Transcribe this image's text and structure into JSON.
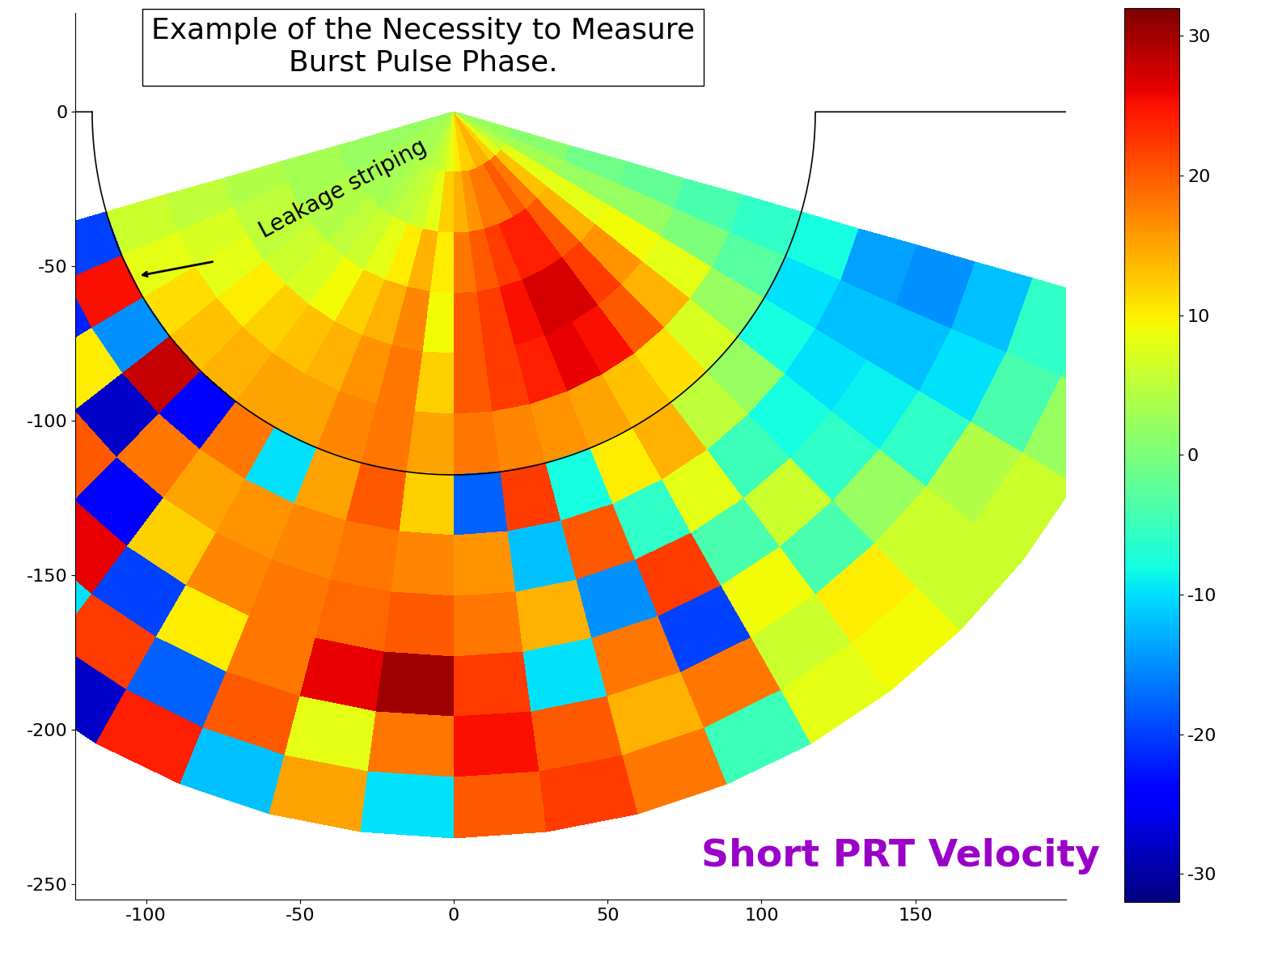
{
  "chart_data": {
    "type": "heatmap",
    "title_lines": [
      "Example of the Necessity to Measure",
      "Burst Pulse Phase."
    ],
    "label": "Short PRT Velocity",
    "annotation": "Leakage striping",
    "xlim": [
      -123,
      199
    ],
    "ylim": [
      -255,
      32
    ],
    "xticks": [
      -100,
      -50,
      0,
      50,
      100,
      150
    ],
    "yticks": [
      0,
      -50,
      -100,
      -150,
      -200,
      -250
    ],
    "grid": false,
    "boundary_radius": 117.5,
    "angle_edges": [
      196,
      203.4,
      210.8,
      218.2,
      225.6,
      233,
      240.4,
      247.8,
      255.2,
      262.6,
      270,
      277.4,
      284.8,
      292.2,
      299.6,
      307,
      314.4,
      321.8,
      329.2,
      336.6,
      344
    ],
    "range_edges": [
      0,
      19.6,
      39.2,
      58.8,
      78.3,
      97.9,
      117.5,
      137.1,
      156.7,
      176.3,
      195.8,
      215.4,
      235
    ],
    "cells": [
      [
        2,
        2,
        3,
        3,
        3,
        3,
        4,
        5,
        6,
        8,
        10,
        12,
        12,
        14,
        14,
        12,
        8,
        5,
        3,
        2
      ],
      [
        2,
        2,
        3,
        3,
        3,
        4,
        5,
        6,
        8,
        12,
        14,
        16,
        18,
        18,
        20,
        18,
        13,
        8,
        3,
        1
      ],
      [
        3,
        3,
        4,
        4,
        5,
        6,
        8,
        10,
        14,
        10,
        18,
        20,
        22,
        24,
        24,
        20,
        14,
        8,
        2,
        -1
      ],
      [
        4,
        5,
        5,
        6,
        7,
        9,
        12,
        14,
        17,
        9,
        20,
        22,
        25,
        27,
        27,
        22,
        16,
        9,
        2,
        -2
      ],
      [
        5,
        7,
        8,
        10,
        12,
        13,
        14,
        16,
        18,
        12,
        20,
        22,
        24,
        26,
        25,
        20,
        14,
        8,
        0,
        -4
      ],
      [
        6,
        8,
        11,
        13,
        14,
        15,
        15,
        17,
        18,
        15,
        18,
        17,
        16,
        15,
        13,
        11,
        7,
        2,
        -3,
        -6
      ],
      [
        -20,
        25,
        -15,
        28,
        -25,
        18,
        -10,
        15,
        20,
        12,
        -18,
        22,
        -8,
        10,
        14,
        5,
        2,
        -8,
        -10,
        -8
      ],
      [
        25,
        -22,
        10,
        -28,
        18,
        15,
        16,
        17,
        18,
        17,
        16,
        -12,
        20,
        -6,
        8,
        -5,
        -8,
        -10,
        -12,
        -14
      ],
      [
        -18,
        28,
        -10,
        20,
        -25,
        12,
        17,
        18,
        19,
        20,
        18,
        14,
        -15,
        22,
        -4,
        6,
        -6,
        -9,
        -12,
        -15
      ],
      [
        22,
        -26,
        15,
        -12,
        26,
        -20,
        10,
        18,
        26,
        30,
        22,
        -10,
        18,
        -20,
        9,
        -4,
        2,
        -6,
        -10,
        -12
      ],
      [
        -24,
        18,
        -28,
        24,
        -10,
        22,
        -18,
        20,
        8,
        18,
        25,
        20,
        14,
        18,
        6,
        10,
        6,
        4,
        -4,
        -6
      ],
      [
        20,
        -15,
        26,
        -22,
        12,
        -28,
        24,
        -12,
        15,
        -10,
        20,
        22,
        18,
        -5,
        8,
        9,
        6,
        6,
        2,
        -4
      ]
    ],
    "clim": [
      -32,
      32
    ],
    "colorbar_ticks": [
      -30,
      -20,
      -10,
      0,
      10,
      20,
      30
    ]
  }
}
